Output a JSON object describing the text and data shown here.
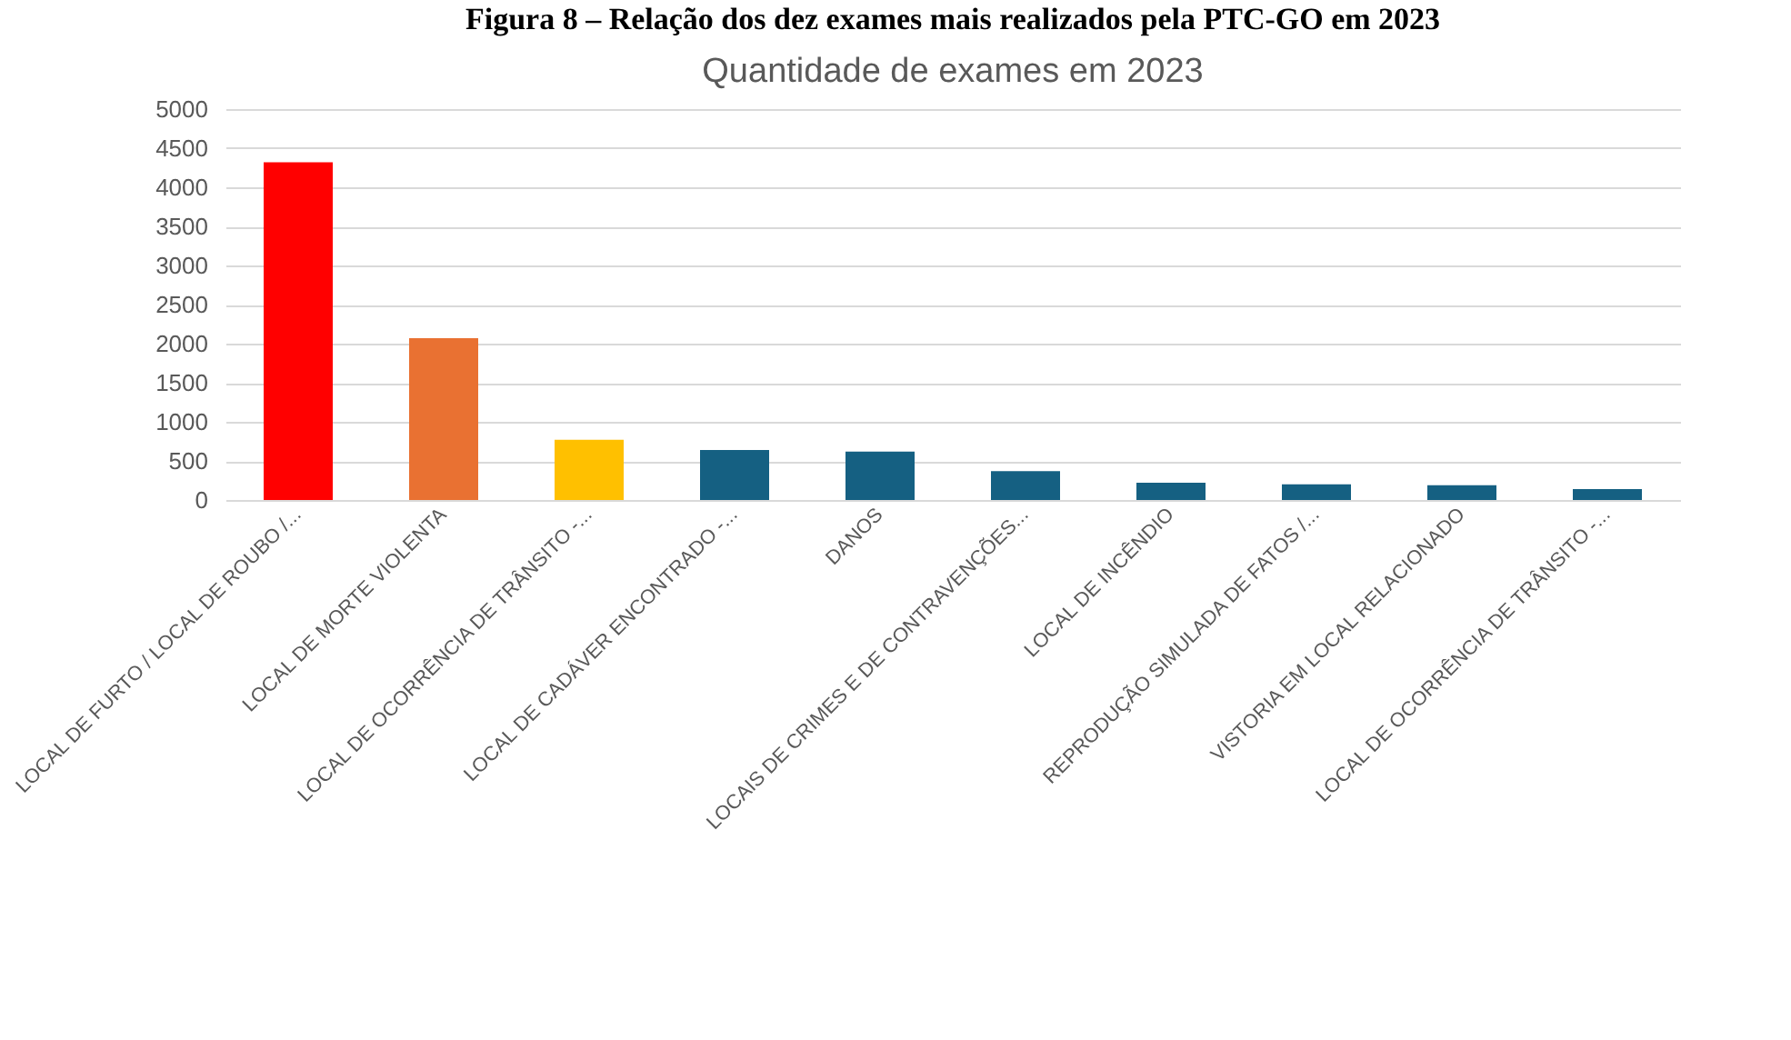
{
  "chart_data": {
    "type": "bar",
    "title": "Figura 8 – Relação dos dez exames mais realizados pela PTC-GO em 2023",
    "subtitle": "Quantidade de exames em 2023",
    "categories": [
      "LOCAL DE FURTO / LOCAL DE ROUBO /...",
      "LOCAL DE MORTE VIOLENTA",
      "LOCAL DE OCORRÊNCIA DE TRÂNSITO -...",
      "LOCAL DE CADÁVER ENCONTRADO -...",
      "DANOS",
      "LOCAIS DE CRIMES E DE CONTRAVENÇÕES...",
      "LOCAL DE INCÊNDIO",
      "REPRODUÇÃO SIMULADA DE FATOS /...",
      "VISTORIA EM LOCAL RELACIONADO",
      "LOCAL DE OCORRÊNCIA DE TRÂNSITO -..."
    ],
    "values": [
      4320,
      2070,
      770,
      640,
      620,
      370,
      220,
      200,
      190,
      140
    ],
    "colors": [
      "#ff0000",
      "#e97132",
      "#ffc000",
      "#156082",
      "#156082",
      "#156082",
      "#156082",
      "#156082",
      "#156082",
      "#156082"
    ],
    "ylim": [
      0,
      5000
    ],
    "yticks": [
      0,
      500,
      1000,
      1500,
      2000,
      2500,
      3000,
      3500,
      4000,
      4500,
      5000
    ],
    "grid": "y"
  }
}
